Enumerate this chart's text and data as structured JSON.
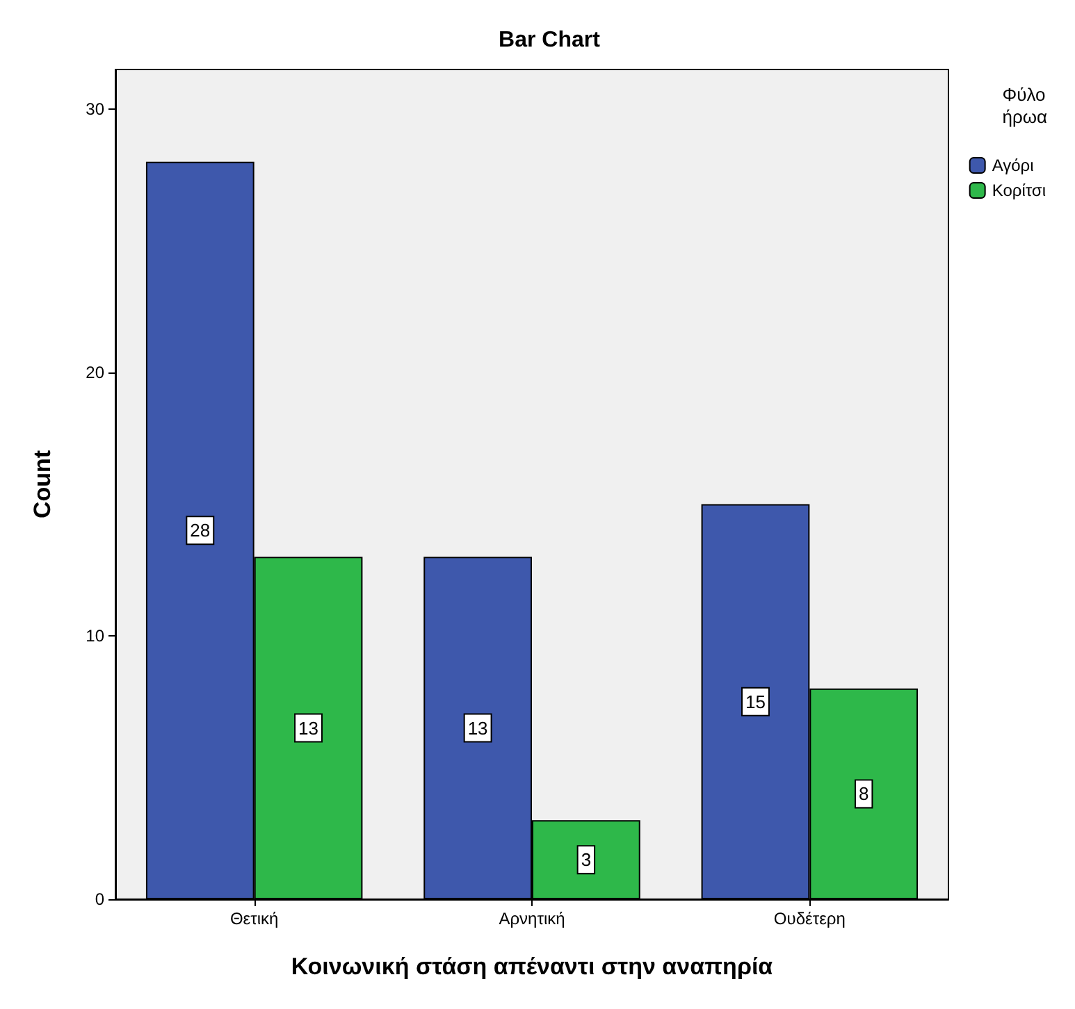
{
  "chart_data": {
    "type": "bar",
    "title": "Bar Chart",
    "xlabel": "Κοινωνική στάση απέναντι στην αναπηρία",
    "ylabel": "Count",
    "legend_title": "Φύλο\nήρωα",
    "categories": [
      "Θετική",
      "Αρνητική",
      "Ουδέτερη"
    ],
    "series": [
      {
        "name": "Αγόρι",
        "color": "#3e58ac",
        "values": [
          28,
          13,
          15
        ]
      },
      {
        "name": "Κορίτσι",
        "color": "#2eb84a",
        "values": [
          13,
          3,
          8
        ]
      }
    ],
    "ylim": [
      0,
      31.5
    ],
    "yticks": [
      0,
      10,
      20,
      30
    ],
    "grid": false,
    "legend": "top right",
    "data_labels": true
  }
}
